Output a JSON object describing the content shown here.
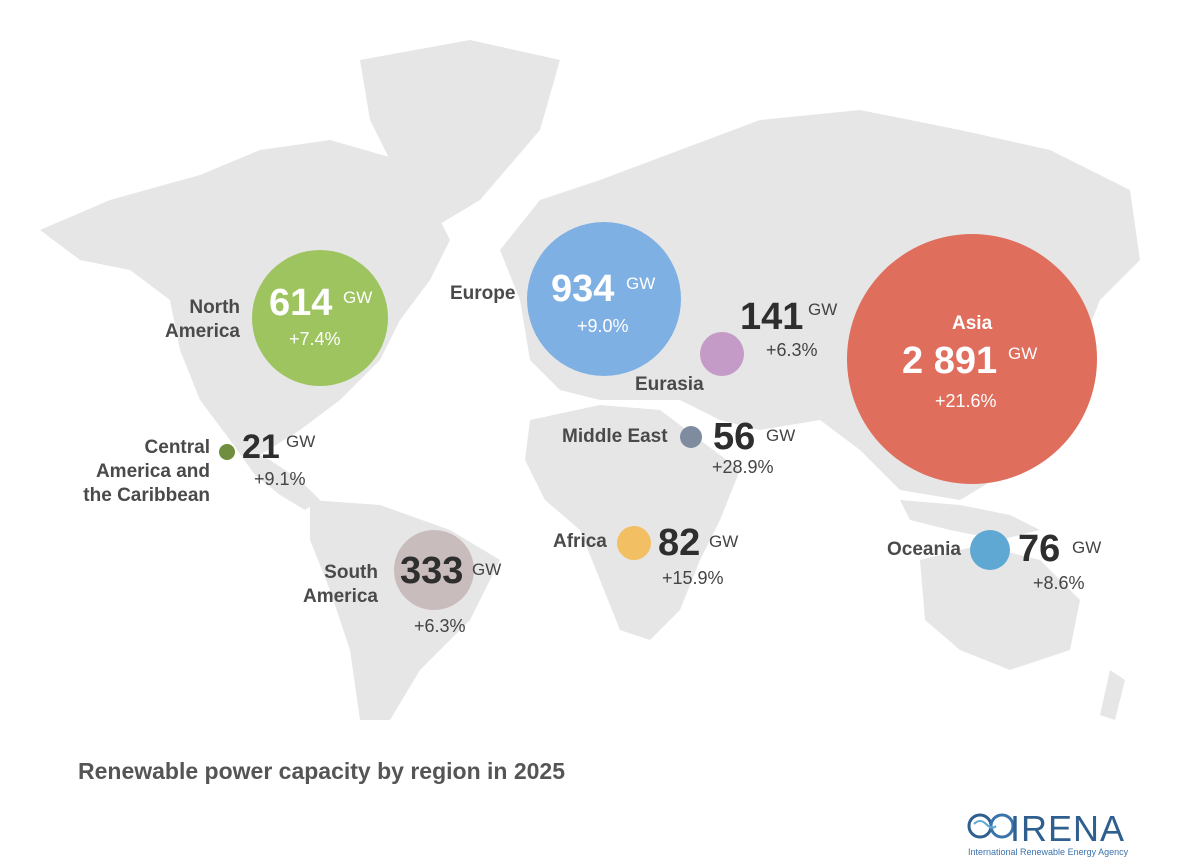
{
  "title": "Renewable power capacity by region in 2025",
  "unit": "GW",
  "regions": [
    {
      "name": "North America",
      "value": "614",
      "change": "+7.4%",
      "color": "#9dc45f"
    },
    {
      "name": "Europe",
      "value": "934",
      "change": "+9.0%",
      "color": "#7fb0e3"
    },
    {
      "name": "Eurasia",
      "value": "141",
      "change": "+6.3%",
      "color": "#c49ac6"
    },
    {
      "name": "Asia",
      "value": "2 891",
      "change": "+21.6%",
      "color": "#e06e5c"
    },
    {
      "name": "Central America and the Caribbean",
      "value": "21",
      "change": "+9.1%",
      "color": "#6f8f3f"
    },
    {
      "name": "Middle East",
      "value": "56",
      "change": "+28.9%",
      "color": "#7f8c9f"
    },
    {
      "name": "Africa",
      "value": "82",
      "change": "+15.9%",
      "color": "#f3bf63"
    },
    {
      "name": "South America",
      "value": "333",
      "change": "+6.3%",
      "color": "#c9bcbc"
    },
    {
      "name": "Oceania",
      "value": "76",
      "change": "+8.6%",
      "color": "#5fa8d3"
    }
  ],
  "logo": {
    "name": "IRENA",
    "subtitle": "International Renewable Energy Agency"
  }
}
